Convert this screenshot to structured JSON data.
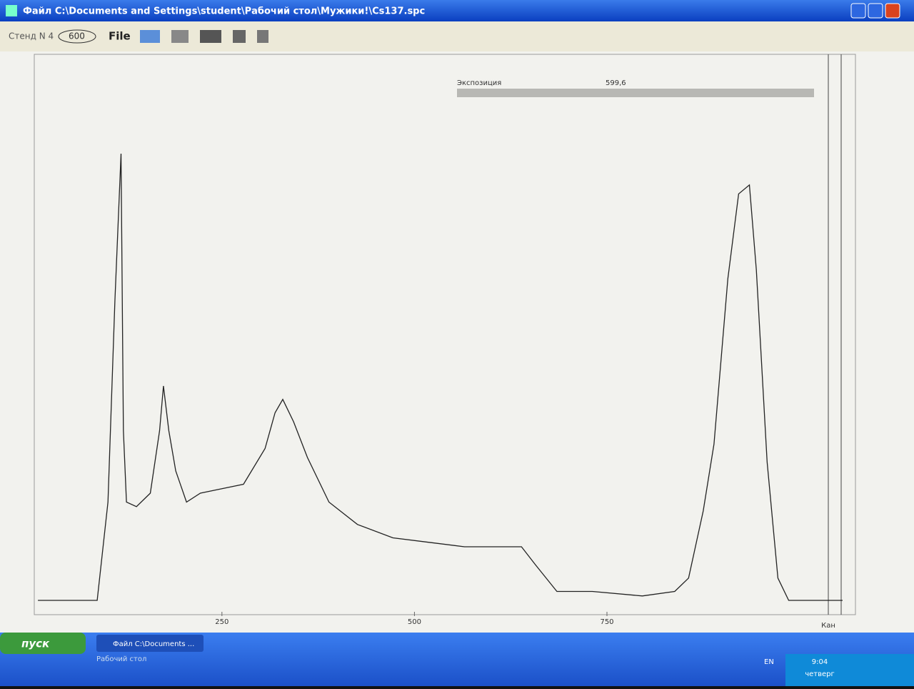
{
  "window": {
    "title": "Файл C:\\Documents and Settings\\student\\Рабочий стол\\Мужики!\\Cs137.spc"
  },
  "toolbar": {
    "stand": "Стенд N 4",
    "time": "600",
    "file_button": "File"
  },
  "exposure": {
    "label": "Экспозиция",
    "value": "599,6"
  },
  "chart_data": {
    "type": "line",
    "x_label": "Кан",
    "color": "#222222",
    "x": [
      11,
      88,
      102,
      111,
      119,
      122,
      126,
      139,
      157,
      169,
      174,
      181,
      190,
      204,
      222,
      250,
      278,
      306,
      319,
      329,
      343,
      361,
      389,
      426,
      472,
      519,
      565,
      611,
      639,
      657,
      685,
      731,
      796,
      838,
      856,
      875,
      889,
      907,
      921,
      935,
      944,
      958,
      972,
      986,
      1056
    ],
    "values": [
      0,
      0,
      22,
      67,
      100,
      38,
      22,
      21,
      24,
      38,
      48,
      38,
      29,
      22,
      24,
      25,
      26,
      34,
      42,
      45,
      40,
      32,
      22,
      17,
      14,
      13,
      12,
      12,
      12,
      8,
      2,
      2,
      1,
      2,
      5,
      20,
      35,
      72,
      91,
      93,
      74,
      31,
      5,
      0,
      0
    ],
    "xlim": [
      10,
      1056
    ],
    "ylim": [
      0,
      100
    ],
    "xticks": [
      250,
      500,
      750
    ]
  },
  "taskbar": {
    "start": "пуск",
    "task": "Файл C:\\Documents ...",
    "desktop": "Рабочий стол",
    "language": "EN",
    "time": "9:04",
    "day": "четверг"
  }
}
